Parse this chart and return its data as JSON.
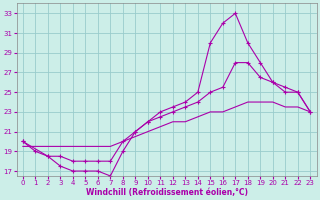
{
  "xlabel": "Windchill (Refroidissement éolien,°C)",
  "bg_color": "#cceee8",
  "line_color": "#aa00aa",
  "grid_color": "#99cccc",
  "xlim": [
    -0.5,
    23.5
  ],
  "ylim": [
    16.5,
    34
  ],
  "xticks": [
    0,
    1,
    2,
    3,
    4,
    5,
    6,
    7,
    8,
    9,
    10,
    11,
    12,
    13,
    14,
    15,
    16,
    17,
    18,
    19,
    20,
    21,
    22,
    23
  ],
  "yticks": [
    17,
    19,
    21,
    23,
    25,
    27,
    29,
    31,
    33
  ],
  "curve1_x": [
    0,
    1,
    2,
    3,
    4,
    5,
    6,
    7,
    8,
    9,
    10,
    11,
    12,
    13,
    14,
    15,
    16,
    17,
    18,
    19,
    20,
    21,
    22,
    23
  ],
  "curve1_y": [
    20,
    19,
    18.5,
    17.5,
    17,
    17,
    17,
    16.5,
    19,
    21,
    22,
    23,
    23.5,
    24,
    25,
    30,
    32,
    33,
    30,
    28,
    26,
    25,
    25,
    23
  ],
  "curve2_x": [
    0,
    2,
    3,
    4,
    5,
    6,
    7,
    8,
    9,
    10,
    11,
    12,
    13,
    14,
    15,
    16,
    17,
    18,
    19,
    20,
    21,
    22,
    23
  ],
  "curve2_y": [
    20,
    18.5,
    18.5,
    18,
    18,
    18,
    18,
    20,
    21,
    22,
    22.5,
    23,
    23.5,
    24,
    25,
    25.5,
    28,
    28,
    26.5,
    26,
    25.5,
    25,
    23
  ],
  "curve3_x": [
    0,
    23
  ],
  "curve3_y": [
    19.5,
    23
  ],
  "curve3_full_x": [
    0,
    1,
    2,
    3,
    4,
    5,
    6,
    7,
    8,
    9,
    10,
    11,
    12,
    13,
    14,
    15,
    16,
    17,
    18,
    19,
    20,
    21,
    22,
    23
  ],
  "curve3_full_y": [
    19.5,
    19.5,
    19.5,
    19.5,
    19.5,
    19.5,
    19.5,
    19.5,
    20,
    20.5,
    21,
    21.5,
    22,
    22,
    22.5,
    23,
    23,
    23.5,
    24,
    24,
    24,
    23.5,
    23.5,
    23
  ]
}
